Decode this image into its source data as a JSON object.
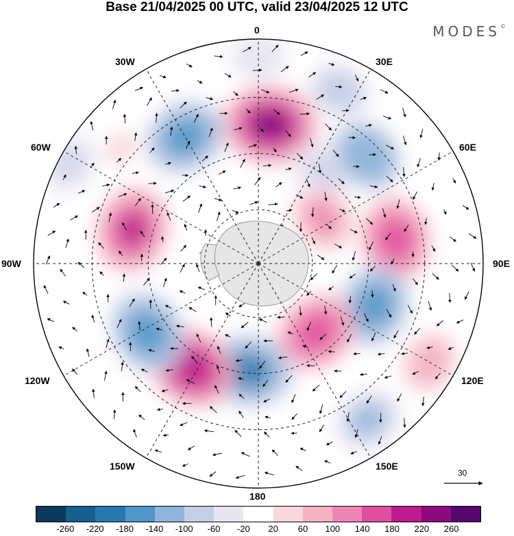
{
  "title": "Base 21/04/2025 00 UTC, valid 23/04/2025 12 UTC",
  "brand": "MODES",
  "brand_mark": "©",
  "longitude_labels": [
    "0",
    "30E",
    "60E",
    "90E",
    "120E",
    "150E",
    "180",
    "150W",
    "120W",
    "90W",
    "60W",
    "30W"
  ],
  "vector_reference": "30",
  "colorbar": {
    "colors": [
      "#0b3a5c",
      "#155f8f",
      "#2878b0",
      "#4f97c8",
      "#8fb6da",
      "#c4cfe6",
      "#e7e6f2",
      "#ffffff",
      "#f8d8dc",
      "#f4b3c2",
      "#ee86b3",
      "#de4fa0",
      "#be1b8c",
      "#8c0a7d",
      "#56066e"
    ],
    "ticks": [
      "-260",
      "-220",
      "-180",
      "-140",
      "-100",
      "-60",
      "-20",
      "20",
      "60",
      "100",
      "140",
      "180",
      "220",
      "260"
    ]
  },
  "anomalies": [
    {
      "lon": 5,
      "r": 0.62,
      "v": 220
    },
    {
      "lon": 330,
      "r": 0.65,
      "v": -170
    },
    {
      "lon": 25,
      "r": 0.85,
      "v": -90
    },
    {
      "lon": 35,
      "r": 0.5,
      "v": -80
    },
    {
      "lon": 45,
      "r": 0.68,
      "v": -140
    },
    {
      "lon": 55,
      "r": 0.35,
      "v": 120
    },
    {
      "lon": 80,
      "r": 0.62,
      "v": 170
    },
    {
      "lon": 110,
      "r": 0.55,
      "v": -170
    },
    {
      "lon": 140,
      "r": 0.4,
      "v": 170
    },
    {
      "lon": 120,
      "r": 0.88,
      "v": 90
    },
    {
      "lon": 145,
      "r": 0.85,
      "v": -110
    },
    {
      "lon": 185,
      "r": 0.48,
      "v": -190
    },
    {
      "lon": 213,
      "r": 0.55,
      "v": 200
    },
    {
      "lon": 238,
      "r": 0.58,
      "v": -180
    },
    {
      "lon": 285,
      "r": 0.58,
      "v": 180
    },
    {
      "lon": 298,
      "r": 0.95,
      "v": -80
    },
    {
      "lon": 0,
      "r": 0.92,
      "v": -60
    },
    {
      "lon": 310,
      "r": 0.8,
      "v": 40
    }
  ]
}
